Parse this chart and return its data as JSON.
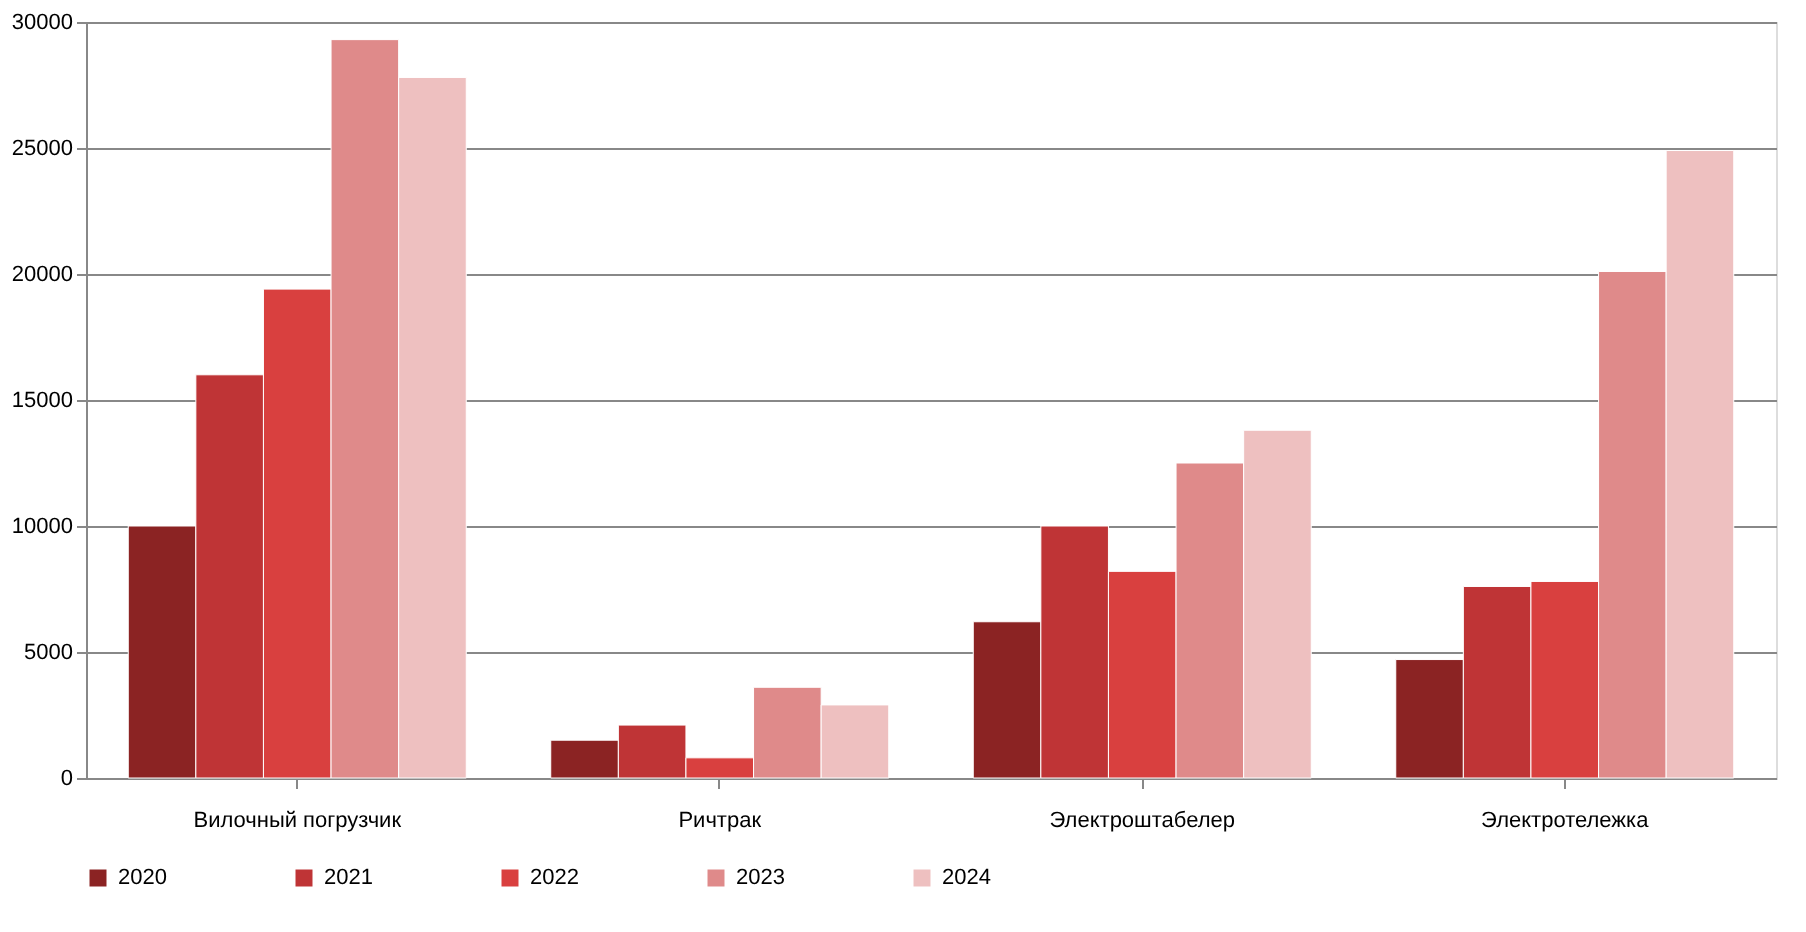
{
  "chart_data": {
    "type": "bar",
    "categories": [
      "Вилочный погрузчик",
      "Ричтрак",
      "Электроштабелер",
      "Электротележка"
    ],
    "series": [
      {
        "name": "2020",
        "color": "#8b2323",
        "values": [
          10000,
          1500,
          6200,
          4700
        ]
      },
      {
        "name": "2021",
        "color": "#bf3436",
        "values": [
          16000,
          2100,
          10000,
          7600
        ]
      },
      {
        "name": "2022",
        "color": "#d9403f",
        "values": [
          19400,
          800,
          8200,
          7800
        ]
      },
      {
        "name": "2023",
        "color": "#df8a8a",
        "values": [
          29300,
          3600,
          12500,
          20100
        ]
      },
      {
        "name": "2024",
        "color": "#eec0c0",
        "values": [
          27800,
          2900,
          13800,
          24900
        ]
      }
    ],
    "ylim": [
      0,
      30000
    ],
    "yticks": [
      0,
      5000,
      10000,
      15000,
      20000,
      25000,
      30000
    ],
    "grid": "y",
    "legend": "bottom"
  }
}
